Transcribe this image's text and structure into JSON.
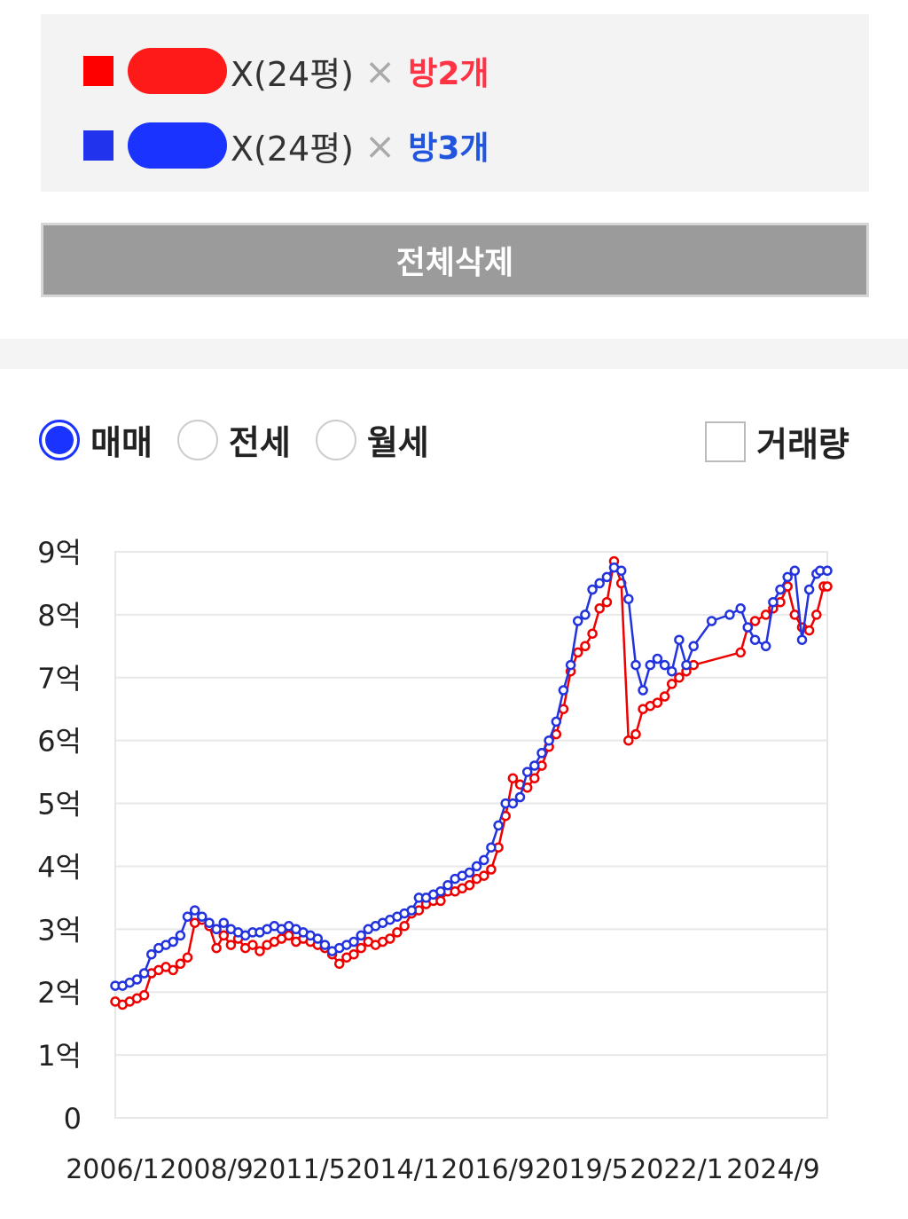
{
  "legend": {
    "items": [
      {
        "name_suffix": "X(24평)",
        "room": "방2개",
        "color": "#ff0000"
      },
      {
        "name_suffix": "X(24평)",
        "room": "방3개",
        "color": "#2233ee"
      }
    ],
    "separator": "×"
  },
  "delete_all_label": "전체삭제",
  "trade_types": {
    "options": [
      "매매",
      "전세",
      "월세"
    ],
    "selected": "매매"
  },
  "volume_label": "거래량",
  "chart_data": {
    "type": "line",
    "x_tick_labels": [
      "2006/1",
      "2008/9",
      "2011/5",
      "2014/1",
      "2016/9",
      "2019/5",
      "2022/1",
      "2024/9"
    ],
    "y_tick_labels": [
      "0",
      "1억",
      "2억",
      "3억",
      "4억",
      "5억",
      "6억",
      "7억",
      "8억",
      "9억"
    ],
    "ylim": [
      0,
      9
    ],
    "xlim": [
      2006.0,
      2025.7
    ],
    "grid": true,
    "y_unit": "억",
    "series": [
      {
        "color": "#ee0000",
        "x": [
          2006.0,
          2006.2,
          2006.4,
          2006.6,
          2006.8,
          2007.0,
          2007.2,
          2007.4,
          2007.6,
          2007.8,
          2008.0,
          2008.2,
          2008.4,
          2008.6,
          2008.8,
          2009.0,
          2009.2,
          2009.4,
          2009.6,
          2009.8,
          2010.0,
          2010.2,
          2010.4,
          2010.6,
          2010.8,
          2011.0,
          2011.2,
          2011.4,
          2011.6,
          2011.8,
          2012.0,
          2012.2,
          2012.4,
          2012.6,
          2012.8,
          2013.0,
          2013.2,
          2013.4,
          2013.6,
          2013.8,
          2014.0,
          2014.2,
          2014.4,
          2014.6,
          2014.8,
          2015.0,
          2015.2,
          2015.4,
          2015.6,
          2015.8,
          2016.0,
          2016.2,
          2016.4,
          2016.6,
          2016.8,
          2017.0,
          2017.2,
          2017.4,
          2017.6,
          2017.8,
          2018.0,
          2018.2,
          2018.4,
          2018.6,
          2018.8,
          2019.0,
          2019.2,
          2019.4,
          2019.6,
          2019.8,
          2020.0,
          2020.2,
          2020.4,
          2020.6,
          2020.8,
          2021.0,
          2021.2,
          2021.4,
          2021.6,
          2021.8,
          2022.0,
          2023.3,
          2023.5,
          2023.7,
          2024.0,
          2024.2,
          2024.4,
          2024.6,
          2024.8,
          2025.0,
          2025.2,
          2025.4,
          2025.6,
          2025.7
        ],
        "values": [
          1.85,
          1.8,
          1.85,
          1.9,
          1.95,
          2.3,
          2.35,
          2.4,
          2.35,
          2.45,
          2.55,
          3.1,
          3.15,
          3.05,
          2.7,
          2.9,
          2.75,
          2.85,
          2.7,
          2.75,
          2.65,
          2.75,
          2.8,
          2.85,
          2.9,
          2.8,
          2.85,
          2.8,
          2.75,
          2.7,
          2.6,
          2.45,
          2.55,
          2.6,
          2.7,
          2.8,
          2.75,
          2.8,
          2.85,
          2.95,
          3.05,
          3.25,
          3.3,
          3.4,
          3.45,
          3.45,
          3.6,
          3.6,
          3.65,
          3.7,
          3.8,
          3.85,
          3.95,
          4.3,
          4.8,
          5.4,
          5.3,
          5.25,
          5.4,
          5.6,
          5.9,
          6.1,
          6.5,
          7.1,
          7.4,
          7.5,
          7.7,
          8.1,
          8.2,
          8.85,
          8.5,
          6.0,
          6.1,
          6.5,
          6.55,
          6.6,
          6.7,
          6.9,
          7.0,
          7.1,
          7.2,
          7.4,
          7.8,
          7.9,
          8.0,
          8.1,
          8.2,
          8.45,
          8.0,
          7.8,
          7.75,
          8.0,
          8.45,
          8.45
        ]
      },
      {
        "color": "#2233dd",
        "x": [
          2006.0,
          2006.2,
          2006.4,
          2006.6,
          2006.8,
          2007.0,
          2007.2,
          2007.4,
          2007.6,
          2007.8,
          2008.0,
          2008.2,
          2008.4,
          2008.6,
          2008.8,
          2009.0,
          2009.2,
          2009.4,
          2009.6,
          2009.8,
          2010.0,
          2010.2,
          2010.4,
          2010.6,
          2010.8,
          2011.0,
          2011.2,
          2011.4,
          2011.6,
          2011.8,
          2012.0,
          2012.2,
          2012.4,
          2012.6,
          2012.8,
          2013.0,
          2013.2,
          2013.4,
          2013.6,
          2013.8,
          2014.0,
          2014.2,
          2014.4,
          2014.6,
          2014.8,
          2015.0,
          2015.2,
          2015.4,
          2015.6,
          2015.8,
          2016.0,
          2016.2,
          2016.4,
          2016.6,
          2016.8,
          2017.0,
          2017.2,
          2017.4,
          2017.6,
          2017.8,
          2018.0,
          2018.2,
          2018.4,
          2018.6,
          2018.8,
          2019.0,
          2019.2,
          2019.4,
          2019.6,
          2019.8,
          2020.0,
          2020.2,
          2020.4,
          2020.6,
          2020.8,
          2021.0,
          2021.2,
          2021.4,
          2021.6,
          2021.8,
          2022.0,
          2022.5,
          2023.0,
          2023.3,
          2023.5,
          2023.7,
          2024.0,
          2024.2,
          2024.4,
          2024.6,
          2024.8,
          2025.0,
          2025.2,
          2025.4,
          2025.5,
          2025.7
        ],
        "values": [
          2.1,
          2.1,
          2.15,
          2.2,
          2.3,
          2.6,
          2.7,
          2.75,
          2.8,
          2.9,
          3.2,
          3.3,
          3.2,
          3.1,
          3.0,
          3.1,
          3.0,
          2.95,
          2.9,
          2.95,
          2.95,
          3.0,
          3.05,
          3.0,
          3.05,
          3.0,
          2.95,
          2.9,
          2.85,
          2.75,
          2.65,
          2.7,
          2.75,
          2.8,
          2.9,
          3.0,
          3.05,
          3.1,
          3.15,
          3.2,
          3.25,
          3.3,
          3.5,
          3.5,
          3.55,
          3.6,
          3.7,
          3.8,
          3.85,
          3.9,
          4.0,
          4.1,
          4.3,
          4.65,
          5.0,
          5.0,
          5.1,
          5.5,
          5.6,
          5.8,
          6.0,
          6.3,
          6.8,
          7.2,
          7.9,
          8.0,
          8.4,
          8.5,
          8.6,
          8.75,
          8.7,
          8.25,
          7.2,
          6.8,
          7.2,
          7.3,
          7.2,
          7.1,
          7.6,
          7.2,
          7.5,
          7.9,
          8.0,
          8.1,
          7.8,
          7.6,
          7.5,
          8.2,
          8.4,
          8.6,
          8.7,
          7.6,
          8.4,
          8.65,
          8.7,
          8.7
        ]
      }
    ]
  }
}
